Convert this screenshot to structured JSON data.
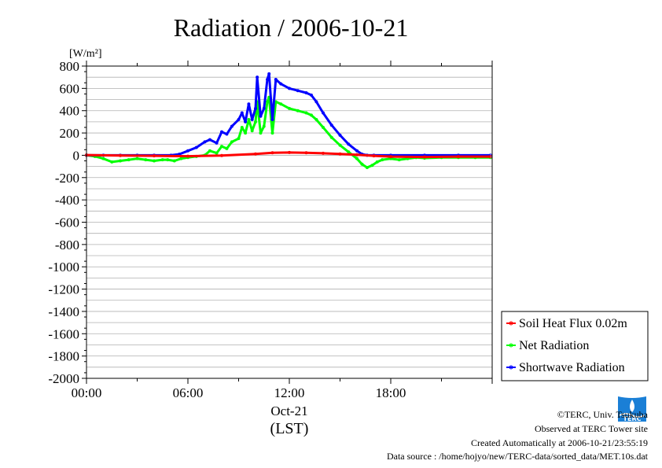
{
  "chart_data": {
    "type": "line",
    "title": "Radiation / 2006-10-21",
    "ylabel": "[W/m²]",
    "xlabel_date": "Oct-21",
    "xlabel_unit": "(LST)",
    "ylim": [
      -2000,
      800
    ],
    "xlim_hours": [
      0,
      24
    ],
    "x_ticks": [
      "00:00",
      "06:00",
      "12:00",
      "18:00"
    ],
    "y_ticks": [
      "800",
      "600",
      "400",
      "200",
      "0",
      "-200",
      "-400",
      "-600",
      "-800",
      "-1000",
      "-1200",
      "-1400",
      "-1600",
      "-1800",
      "-2000"
    ],
    "grid": true,
    "legend_position": "bottom-right",
    "series": [
      {
        "name": "Soil Heat Flux 0.02m",
        "color": "#ff0000",
        "x": [
          0,
          2,
          4,
          6,
          8,
          10,
          11,
          12,
          13,
          14,
          15,
          16,
          17,
          18,
          20,
          22,
          23.9
        ],
        "values": [
          2,
          -2,
          -5,
          -8,
          -2,
          12,
          22,
          25,
          22,
          18,
          12,
          5,
          -5,
          -12,
          -15,
          -12,
          -12
        ]
      },
      {
        "name": "Net Radiation",
        "color": "#00ff00",
        "x": [
          0,
          0.5,
          1,
          1.5,
          2,
          2.5,
          3,
          3.5,
          4,
          4.5,
          4.8,
          5.2,
          5.6,
          6,
          6.5,
          7,
          7.3,
          7.7,
          8,
          8.3,
          8.6,
          9,
          9.2,
          9.4,
          9.6,
          9.8,
          10,
          10.1,
          10.3,
          10.5,
          10.7,
          10.8,
          11,
          11.2,
          11.5,
          12,
          12.5,
          13,
          13.3,
          13.6,
          14,
          14.5,
          15,
          15.5,
          16,
          16.3,
          16.6,
          16.9,
          17.2,
          17.5,
          18,
          18.5,
          19,
          19.5,
          20,
          21,
          22,
          23,
          23.9
        ],
        "values": [
          0,
          -10,
          -30,
          -60,
          -50,
          -40,
          -30,
          -40,
          -50,
          -40,
          -40,
          -50,
          -30,
          -20,
          -10,
          0,
          40,
          20,
          80,
          60,
          120,
          150,
          250,
          200,
          320,
          220,
          300,
          480,
          200,
          260,
          480,
          520,
          200,
          480,
          460,
          420,
          400,
          380,
          360,
          320,
          250,
          160,
          90,
          30,
          -30,
          -80,
          -110,
          -90,
          -60,
          -40,
          -30,
          -40,
          -30,
          -20,
          -25,
          -20,
          -20,
          -20,
          -20
        ]
      },
      {
        "name": "Shortwave Radiation",
        "color": "#0000ff",
        "x": [
          0,
          1,
          2,
          3,
          4,
          5,
          5.5,
          6,
          6.5,
          7,
          7.3,
          7.7,
          8,
          8.3,
          8.6,
          9,
          9.2,
          9.4,
          9.6,
          9.8,
          10,
          10.1,
          10.3,
          10.5,
          10.7,
          10.8,
          11,
          11.2,
          11.5,
          12,
          12.5,
          13,
          13.3,
          13.6,
          14,
          14.5,
          15,
          15.5,
          16,
          16.3,
          16.6,
          17,
          18,
          20,
          22,
          23.9
        ],
        "values": [
          0,
          0,
          0,
          0,
          0,
          0,
          10,
          40,
          70,
          120,
          140,
          110,
          210,
          190,
          260,
          320,
          380,
          300,
          460,
          320,
          420,
          700,
          350,
          420,
          680,
          730,
          320,
          680,
          640,
          600,
          580,
          560,
          540,
          480,
          380,
          270,
          180,
          100,
          40,
          10,
          0,
          0,
          0,
          0,
          0,
          0
        ]
      }
    ]
  },
  "footer": {
    "copyright": "©TERC, Univ. Tsukuba",
    "observed": "Observed at TERC Tower site",
    "created": "Created Automatically at 2006-10-21/23:55:19",
    "source": "Data source : /home/hojyo/new/TERC-data/sorted_data/MET.10s.dat"
  },
  "logo": {
    "text": "TERC",
    "color": "#1a7fd6"
  }
}
